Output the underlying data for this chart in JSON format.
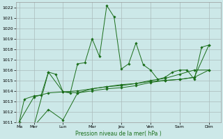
{
  "xlabel": "Pression niveau de la mer( hPa )",
  "ylim": [
    1011,
    1022.5
  ],
  "yticks": [
    1011,
    1012,
    1013,
    1014,
    1015,
    1016,
    1017,
    1018,
    1019,
    1020,
    1021,
    1022
  ],
  "xtick_labels": [
    "Ma",
    "Mer",
    "Lun",
    "Mar",
    "Jeu",
    "Ven",
    "Sam",
    "Dim"
  ],
  "xtick_positions": [
    0,
    1,
    3,
    5,
    7,
    9,
    11,
    13
  ],
  "xlim": [
    -0.2,
    13.8
  ],
  "background_color": "#cce8e8",
  "grid_color": "#aabbbb",
  "line_color": "#1a6e1a",
  "series": [
    {
      "x": [
        0,
        0.35,
        1.0,
        1.5,
        2.0,
        2.5,
        3.0,
        3.5,
        4.0,
        4.5,
        5.0,
        5.5,
        6.0,
        6.5,
        7.0,
        7.5,
        8.0,
        8.5,
        9.0,
        9.5,
        10.0,
        10.5,
        11.0,
        11.5,
        12.0,
        12.5,
        13.0
      ],
      "y": [
        1011.0,
        1013.2,
        1013.5,
        1013.6,
        1015.8,
        1015.6,
        1013.9,
        1013.8,
        1016.6,
        1016.7,
        1019.0,
        1017.3,
        1022.2,
        1021.1,
        1016.1,
        1016.6,
        1018.6,
        1016.5,
        1016.0,
        1015.1,
        1015.3,
        1015.8,
        1016.0,
        1016.0,
        1015.1,
        1018.2,
        1018.4
      ]
    },
    {
      "x": [
        0,
        1,
        2,
        3,
        4,
        5,
        6,
        7,
        8,
        9,
        10,
        11,
        12,
        13
      ],
      "y": [
        1011.0,
        1010.6,
        1012.2,
        1011.2,
        1013.8,
        1014.0,
        1014.2,
        1014.3,
        1014.5,
        1014.8,
        1015.0,
        1015.1,
        1015.3,
        1016.0
      ]
    },
    {
      "x": [
        0,
        1,
        2,
        3,
        4,
        5,
        6,
        7,
        8,
        9,
        10,
        11,
        12,
        13
      ],
      "y": [
        1011.0,
        1013.4,
        1013.8,
        1013.9,
        1014.0,
        1014.2,
        1014.4,
        1014.6,
        1014.7,
        1014.9,
        1015.0,
        1015.1,
        1015.3,
        1018.4
      ]
    },
    {
      "x": [
        0,
        1,
        2,
        3,
        4,
        5,
        6,
        7,
        8,
        9,
        10,
        11,
        12,
        13
      ],
      "y": [
        1011.0,
        1010.6,
        1015.8,
        1013.9,
        1013.8,
        1014.2,
        1014.4,
        1014.5,
        1014.7,
        1015.0,
        1015.2,
        1015.6,
        1016.0,
        1016.0
      ]
    }
  ]
}
